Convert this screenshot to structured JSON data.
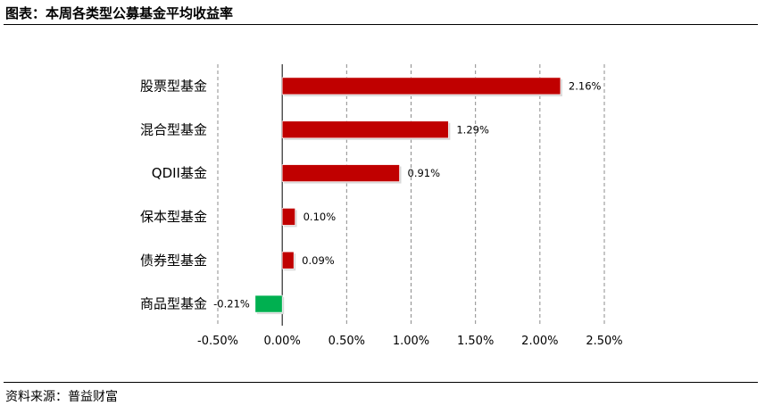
{
  "header": {
    "title": "图表：本周各类型公募基金平均收益率"
  },
  "footer": {
    "source": "资料来源：普益财富"
  },
  "colors": {
    "positive": "#C00000",
    "negative": "#00B050",
    "grid": "#8C8C8C"
  },
  "chart_data": {
    "type": "bar",
    "orientation": "horizontal",
    "title": "",
    "xlabel": "",
    "ylabel": "",
    "categories": [
      "股票型基金",
      "混合型基金",
      "QDII基金",
      "保本型基金",
      "债券型基金",
      "商品型基金"
    ],
    "values": [
      2.16,
      1.29,
      0.91,
      0.1,
      0.09,
      -0.21
    ],
    "data_labels": [
      "2.16%",
      "1.29%",
      "0.91%",
      "0.10%",
      "0.09%",
      "-0.21%"
    ],
    "xlim": [
      -0.5,
      2.5
    ],
    "xticks": [
      -0.5,
      0.0,
      0.5,
      1.0,
      1.5,
      2.0,
      2.5
    ],
    "xtick_labels": [
      "-0.50%",
      "0.00%",
      "0.50%",
      "1.00%",
      "1.50%",
      "2.00%",
      "2.50%"
    ],
    "grid": "vertical-dashed",
    "legend": "none"
  }
}
